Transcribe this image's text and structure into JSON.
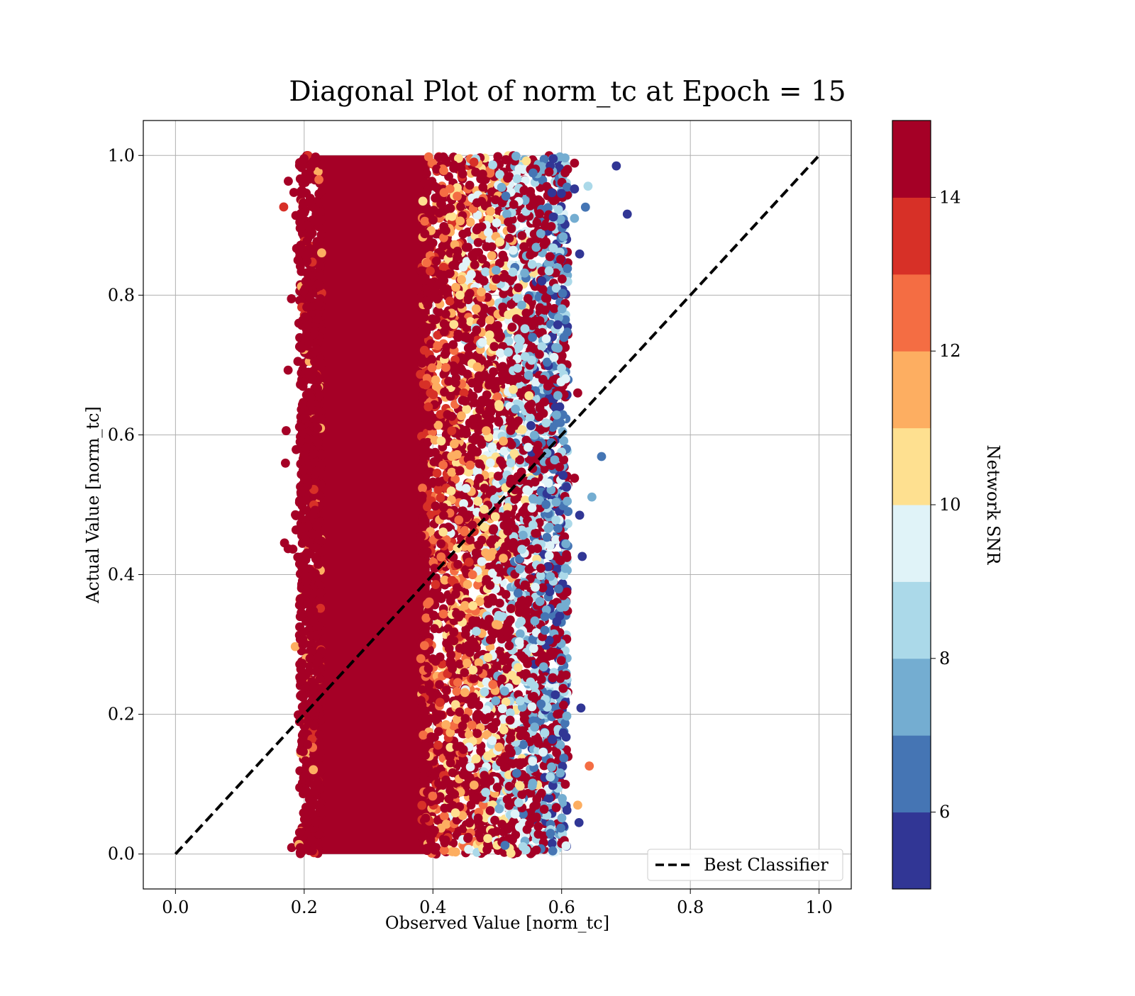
{
  "chart_data": {
    "type": "scatter",
    "title": "Diagonal Plot of norm_tc at Epoch = 15",
    "xlabel": "Observed Value [norm_tc]",
    "ylabel": "Actual Value [norm_tc]",
    "xlim": [
      -0.05,
      1.05
    ],
    "ylim": [
      -0.05,
      1.05
    ],
    "xticks": [
      0.0,
      0.2,
      0.4,
      0.6,
      0.8,
      1.0
    ],
    "yticks": [
      0.0,
      0.2,
      0.4,
      0.6,
      0.8,
      1.0
    ],
    "xtick_labels": [
      "0.0",
      "0.2",
      "0.4",
      "0.6",
      "0.8",
      "1.0"
    ],
    "ytick_labels": [
      "0.0",
      "0.2",
      "0.4",
      "0.6",
      "0.8",
      "1.0"
    ],
    "grid": true,
    "reference_line": {
      "label": "Best Classifier",
      "x": [
        0.0,
        1.0
      ],
      "y": [
        0.0,
        1.0
      ],
      "color": "#000000",
      "style": "dashed"
    },
    "legend": {
      "position": "lower-right",
      "entries": [
        "Best Classifier"
      ]
    },
    "colorbar": {
      "label": "Network SNR",
      "range": [
        5,
        15
      ],
      "ticks": [
        6,
        8,
        10,
        12,
        14
      ],
      "tick_labels": [
        "6",
        "8",
        "10",
        "12",
        "14"
      ],
      "colors": [
        "#313695",
        "#4575b4",
        "#74add1",
        "#abd9e9",
        "#e0f3f8",
        "#fee090",
        "#fdae61",
        "#f46d43",
        "#d73027",
        "#a50026"
      ]
    },
    "series": [
      {
        "color_by": "Network SNR",
        "distribution": {
          "x_range": [
            0.2,
            0.62
          ],
          "y_range": [
            0.0,
            1.0
          ],
          "dense_core_x": [
            0.21,
            0.4
          ],
          "note_sample": "dense cloud of points; high SNR (~15) concentrated at x 0.2-0.4, mixed SNR toward x 0.45-0.62"
        },
        "points": [
          {
            "x": 0.685,
            "y": 0.985,
            "snr": 5.2
          },
          {
            "x": 0.702,
            "y": 0.916,
            "snr": 5.3
          },
          {
            "x": 0.641,
            "y": 0.956,
            "snr": 8.6
          },
          {
            "x": 0.637,
            "y": 0.926,
            "snr": 6.4
          },
          {
            "x": 0.62,
            "y": 0.952,
            "snr": 5.5
          },
          {
            "x": 0.62,
            "y": 0.91,
            "snr": 7.0
          },
          {
            "x": 0.628,
            "y": 0.859,
            "snr": 5.3
          },
          {
            "x": 0.662,
            "y": 0.569,
            "snr": 6.6
          },
          {
            "x": 0.647,
            "y": 0.511,
            "snr": 7.8
          },
          {
            "x": 0.628,
            "y": 0.485,
            "snr": 5.4
          },
          {
            "x": 0.632,
            "y": 0.426,
            "snr": 5.5
          },
          {
            "x": 0.63,
            "y": 0.209,
            "snr": 5.6
          },
          {
            "x": 0.643,
            "y": 0.126,
            "snr": 12.8
          },
          {
            "x": 0.627,
            "y": 0.045,
            "snr": 5.8
          },
          {
            "x": 0.625,
            "y": 0.07,
            "snr": 11.3
          },
          {
            "x": 0.62,
            "y": 0.989,
            "snr": 14.8
          },
          {
            "x": 0.625,
            "y": 0.66,
            "snr": 14.6
          },
          {
            "x": 0.62,
            "y": 0.538,
            "snr": 14.6
          },
          {
            "x": 0.172,
            "y": 0.606,
            "snr": 14.9
          },
          {
            "x": 0.187,
            "y": 0.914,
            "snr": 14.9
          },
          {
            "x": 0.19,
            "y": 0.425,
            "snr": 14.9
          }
        ]
      }
    ]
  }
}
